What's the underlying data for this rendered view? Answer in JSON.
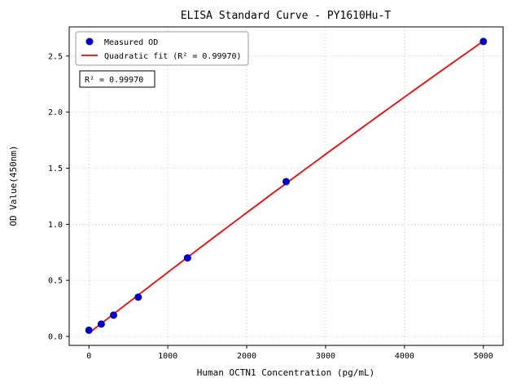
{
  "chart_data": {
    "type": "scatter",
    "title": "ELISA Standard Curve - PY1610Hu-T",
    "xlabel": "Human OCTN1 Concentration (pg/mL)",
    "ylabel": "OD Value(450nm)",
    "series": [
      {
        "name": "Measured OD",
        "type": "scatter",
        "color": "#0000cc",
        "x": [
          0,
          156.25,
          312.5,
          625,
          1250,
          2500,
          5000
        ],
        "y": [
          0.055,
          0.11,
          0.19,
          0.35,
          0.7,
          1.38,
          2.63
        ]
      },
      {
        "name": "Quadratic fit (R² = 0.99970)",
        "type": "quadratic-fit",
        "color": "#ff0000"
      }
    ],
    "xlim": [
      -250,
      5250
    ],
    "ylim": [
      -0.08,
      2.76
    ],
    "xticks": [
      0,
      1000,
      2000,
      3000,
      4000,
      5000
    ],
    "xtick_labels": [
      "0",
      "1000",
      "2000",
      "3000",
      "4000",
      "5000"
    ],
    "yticks": [
      0,
      0.5,
      1,
      1.5,
      2,
      2.5
    ],
    "ytick_labels": [
      "0.0",
      "0.5",
      "1.0",
      "1.5",
      "2.0",
      "2.5"
    ],
    "grid": true,
    "legend_position": "upper-left",
    "annotation": "R² = 0.99970",
    "r_squared": 0.9997
  }
}
